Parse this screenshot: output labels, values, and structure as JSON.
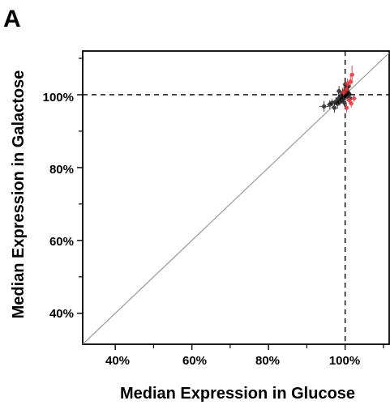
{
  "panel_label": "A",
  "chart_data": {
    "type": "scatter",
    "xlabel": "Median Expression in Glucose",
    "ylabel": "Median Expression in Galactose",
    "xlim": [
      31.5,
      111.5
    ],
    "ylim": [
      31.5,
      112
    ],
    "x_ticks": [
      40,
      60,
      80,
      100
    ],
    "y_ticks": [
      40,
      60,
      80,
      100
    ],
    "x_tick_labels": [
      "40%",
      "60%",
      "80%",
      "100%"
    ],
    "y_tick_labels": [
      "40%",
      "60%",
      "80%",
      "100%"
    ],
    "tick_suffix": "%",
    "grid": false,
    "reference_lines": {
      "diagonal": "y = x",
      "horizontal": 100,
      "vertical": 100
    },
    "colors": {
      "black_points": "#000000",
      "red_points": "#e8383d",
      "diagonal": "#999999",
      "reference": "#000000"
    },
    "series": [
      {
        "color_role": "black",
        "points": [
          {
            "x": 94.5,
            "y": 96.8,
            "ex": 1.2,
            "ey": 1.5
          },
          {
            "x": 96.0,
            "y": 97.3,
            "ex": 0.8,
            "ey": 1.2
          },
          {
            "x": 96.6,
            "y": 97.8,
            "ex": 0.9,
            "ey": 1.0
          },
          {
            "x": 97.2,
            "y": 96.4,
            "ex": 0.6,
            "ey": 1.4
          },
          {
            "x": 97.6,
            "y": 98.2,
            "ex": 0.8,
            "ey": 1.1
          },
          {
            "x": 98.0,
            "y": 97.5,
            "ex": 0.7,
            "ey": 1.3
          },
          {
            "x": 98.3,
            "y": 99.0,
            "ex": 0.8,
            "ey": 1.5
          },
          {
            "x": 98.6,
            "y": 98.0,
            "ex": 0.6,
            "ey": 1.0
          },
          {
            "x": 98.9,
            "y": 99.6,
            "ex": 0.7,
            "ey": 1.2
          },
          {
            "x": 99.1,
            "y": 98.5,
            "ex": 0.5,
            "ey": 0.9
          },
          {
            "x": 99.3,
            "y": 100.3,
            "ex": 0.6,
            "ey": 1.6
          },
          {
            "x": 99.5,
            "y": 99.2,
            "ex": 0.5,
            "ey": 1.1
          },
          {
            "x": 99.7,
            "y": 100.8,
            "ex": 0.6,
            "ey": 1.4
          },
          {
            "x": 99.9,
            "y": 99.8,
            "ex": 0.5,
            "ey": 1.0
          },
          {
            "x": 100.1,
            "y": 101.2,
            "ex": 0.6,
            "ey": 1.5
          },
          {
            "x": 100.2,
            "y": 100.0,
            "ex": 0.5,
            "ey": 0.9
          },
          {
            "x": 100.4,
            "y": 101.8,
            "ex": 0.5,
            "ey": 1.3
          },
          {
            "x": 100.5,
            "y": 99.5,
            "ex": 0.5,
            "ey": 1.2
          },
          {
            "x": 100.7,
            "y": 100.6,
            "ex": 0.6,
            "ey": 1.1
          },
          {
            "x": 100.9,
            "y": 102.3,
            "ex": 0.5,
            "ey": 1.2
          },
          {
            "x": 101.1,
            "y": 100.2,
            "ex": 0.6,
            "ey": 1.0
          },
          {
            "x": 101.3,
            "y": 99.0,
            "ex": 0.5,
            "ey": 1.3
          },
          {
            "x": 99.8,
            "y": 97.8,
            "ex": 0.6,
            "ey": 1.0
          },
          {
            "x": 98.4,
            "y": 101.0,
            "ex": 0.7,
            "ey": 1.4
          },
          {
            "x": 100.0,
            "y": 102.8,
            "ex": 0.5,
            "ey": 1.2
          }
        ]
      },
      {
        "color_role": "red",
        "points": [
          {
            "x": 101.8,
            "y": 105.5,
            "ex": 0.6,
            "ey": 2.5
          },
          {
            "x": 101.4,
            "y": 103.6,
            "ex": 0.7,
            "ey": 1.6
          },
          {
            "x": 100.6,
            "y": 103.0,
            "ex": 0.6,
            "ey": 1.4
          },
          {
            "x": 100.3,
            "y": 101.5,
            "ex": 0.5,
            "ey": 1.2
          },
          {
            "x": 101.0,
            "y": 98.6,
            "ex": 0.6,
            "ey": 1.0
          },
          {
            "x": 102.3,
            "y": 99.0,
            "ex": 0.7,
            "ey": 0.9
          },
          {
            "x": 101.6,
            "y": 97.6,
            "ex": 0.5,
            "ey": 1.1
          },
          {
            "x": 100.4,
            "y": 96.4,
            "ex": 0.5,
            "ey": 1.3
          },
          {
            "x": 99.6,
            "y": 100.6,
            "ex": 0.5,
            "ey": 1.0
          }
        ]
      }
    ]
  }
}
